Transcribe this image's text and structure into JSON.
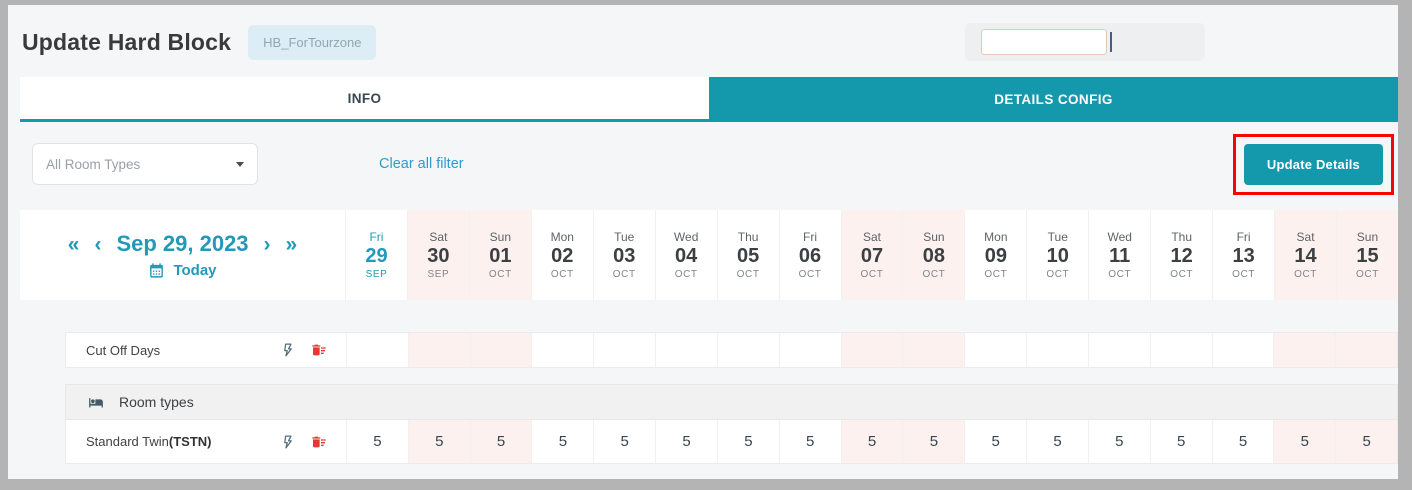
{
  "page": {
    "title": "Update Hard Block",
    "badge": "HB_ForTourzone"
  },
  "tabs": [
    {
      "label": "INFO",
      "active": false
    },
    {
      "label": "DETAILS CONFIG",
      "active": true
    }
  ],
  "filters": {
    "room_type_selected": "All Room Types",
    "clear_link": "Clear all filter",
    "update_button": "Update Details"
  },
  "date_nav": {
    "first_icon": "«",
    "prev_icon": "‹",
    "current_date": "Sep 29, 2023",
    "next_icon": "›",
    "last_icon": "»",
    "today_label": "Today"
  },
  "calendar": {
    "days": [
      {
        "dow": "Fri",
        "day": "29",
        "month": "SEP",
        "weekend": false,
        "today": true
      },
      {
        "dow": "Sat",
        "day": "30",
        "month": "SEP",
        "weekend": true,
        "today": false
      },
      {
        "dow": "Sun",
        "day": "01",
        "month": "OCT",
        "weekend": true,
        "today": false
      },
      {
        "dow": "Mon",
        "day": "02",
        "month": "OCT",
        "weekend": false,
        "today": false
      },
      {
        "dow": "Tue",
        "day": "03",
        "month": "OCT",
        "weekend": false,
        "today": false
      },
      {
        "dow": "Wed",
        "day": "04",
        "month": "OCT",
        "weekend": false,
        "today": false
      },
      {
        "dow": "Thu",
        "day": "05",
        "month": "OCT",
        "weekend": false,
        "today": false
      },
      {
        "dow": "Fri",
        "day": "06",
        "month": "OCT",
        "weekend": false,
        "today": false
      },
      {
        "dow": "Sat",
        "day": "07",
        "month": "OCT",
        "weekend": true,
        "today": false
      },
      {
        "dow": "Sun",
        "day": "08",
        "month": "OCT",
        "weekend": true,
        "today": false
      },
      {
        "dow": "Mon",
        "day": "09",
        "month": "OCT",
        "weekend": false,
        "today": false
      },
      {
        "dow": "Tue",
        "day": "10",
        "month": "OCT",
        "weekend": false,
        "today": false
      },
      {
        "dow": "Wed",
        "day": "11",
        "month": "OCT",
        "weekend": false,
        "today": false
      },
      {
        "dow": "Thu",
        "day": "12",
        "month": "OCT",
        "weekend": false,
        "today": false
      },
      {
        "dow": "Fri",
        "day": "13",
        "month": "OCT",
        "weekend": false,
        "today": false
      },
      {
        "dow": "Sat",
        "day": "14",
        "month": "OCT",
        "weekend": true,
        "today": false
      },
      {
        "dow": "Sun",
        "day": "15",
        "month": "OCT",
        "weekend": true,
        "today": false
      }
    ]
  },
  "grid": {
    "cutoff_row": {
      "label": "Cut Off Days",
      "values": [
        "",
        "",
        "",
        "",
        "",
        "",
        "",
        "",
        "",
        "",
        "",
        "",
        "",
        "",
        "",
        "",
        ""
      ]
    },
    "room_section_label": "Room types",
    "room_rows": [
      {
        "label": "Standard Twin",
        "code": "(TSTN)",
        "values": [
          "5",
          "5",
          "5",
          "5",
          "5",
          "5",
          "5",
          "5",
          "5",
          "5",
          "5",
          "5",
          "5",
          "5",
          "5",
          "5",
          "5"
        ]
      }
    ]
  },
  "colors": {
    "accent_teal": "#1398ac",
    "nav_teal": "#2299b8",
    "weekend_pink": "#fcf1ef",
    "highlight_red": "#f40606",
    "trash_red": "#e53935",
    "link_blue": "#2e9bcc",
    "badge_bg": "#dcedf5",
    "page_bg": "#f5f6f8"
  }
}
